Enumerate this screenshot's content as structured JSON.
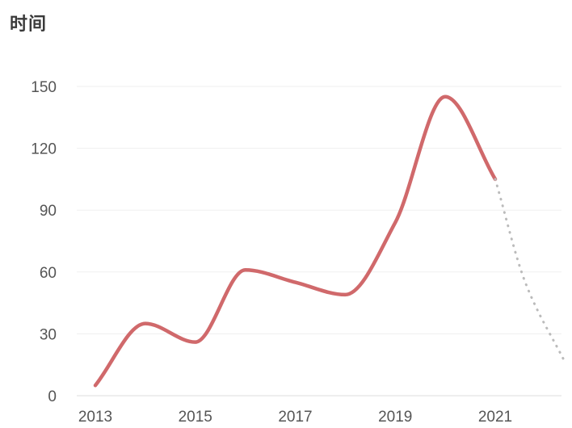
{
  "chart_data": {
    "type": "line",
    "title": "时间",
    "xlabel": "",
    "ylabel": "",
    "x_ticks": [
      "2013",
      "2015",
      "2017",
      "2019",
      "2021"
    ],
    "y_ticks": [
      "0",
      "30",
      "60",
      "90",
      "120",
      "150"
    ],
    "xlim": [
      2013,
      2022.4
    ],
    "ylim": [
      0,
      150
    ],
    "grid": true,
    "line_color": "#d0696b",
    "projection_color": "#bbbbbb",
    "series": [
      {
        "style": "solid",
        "x": [
          2013,
          2014,
          2015,
          2016,
          2017,
          2018,
          2019,
          2020,
          2021
        ],
        "y": [
          5,
          35,
          26,
          61,
          55,
          49,
          84,
          145,
          105
        ]
      },
      {
        "style": "dotted",
        "x": [
          2021,
          2021.6,
          2022.4
        ],
        "y": [
          105,
          55,
          16
        ]
      }
    ]
  }
}
